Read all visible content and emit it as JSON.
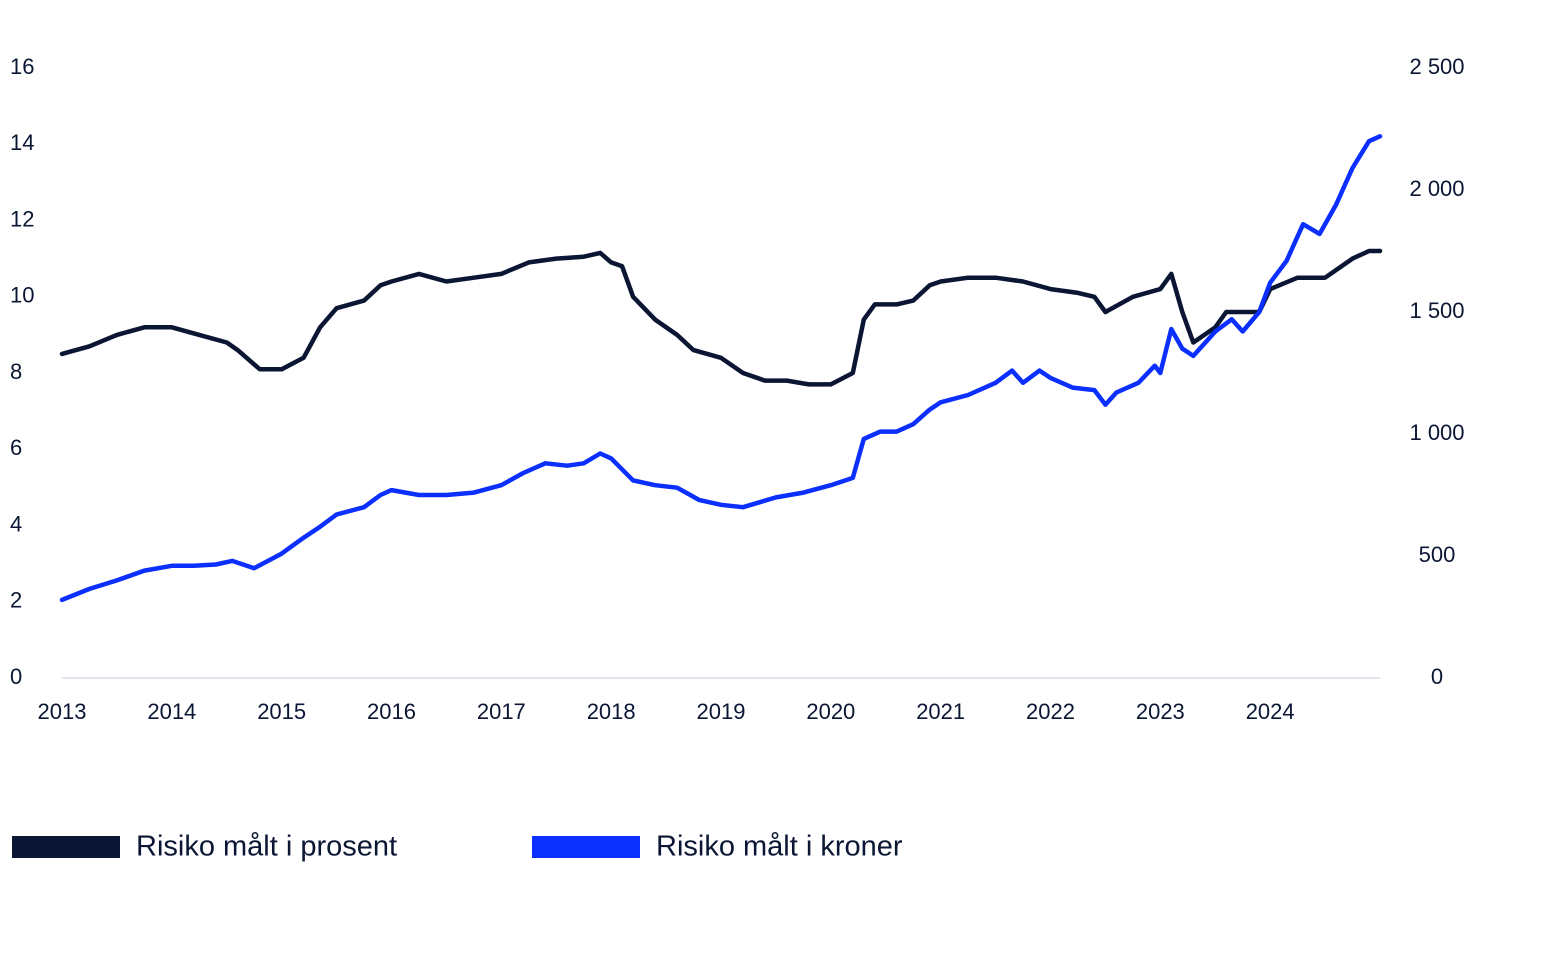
{
  "chart_data": {
    "type": "line",
    "title": "",
    "xlabel": "",
    "ylabel_left": "",
    "ylabel_right": "",
    "x_tick_labels": [
      "2013",
      "2014",
      "2015",
      "2016",
      "2017",
      "2018",
      "2019",
      "2020",
      "2021",
      "2022",
      "2023",
      "2024"
    ],
    "xlim": [
      2013.0,
      2025.0
    ],
    "y_left": {
      "lim": [
        0,
        16
      ],
      "tick_labels": [
        "0",
        "2",
        "4",
        "6",
        "8",
        "10",
        "12",
        "14",
        "16"
      ]
    },
    "y_right": {
      "lim": [
        0,
        2500
      ],
      "tick_labels": [
        "0",
        "500",
        "1 000",
        "1 500",
        "2 000",
        "2 500"
      ]
    },
    "grid": false,
    "legend_position": "bottom-left",
    "series": [
      {
        "name": "Risiko målt i prosent",
        "axis": "left",
        "color": "#0a1633",
        "points": [
          [
            2013.0,
            8.5
          ],
          [
            2013.25,
            8.7
          ],
          [
            2013.5,
            9.0
          ],
          [
            2013.75,
            9.2
          ],
          [
            2014.0,
            9.2
          ],
          [
            2014.25,
            9.0
          ],
          [
            2014.5,
            8.8
          ],
          [
            2014.6,
            8.6
          ],
          [
            2014.8,
            8.1
          ],
          [
            2015.0,
            8.1
          ],
          [
            2015.2,
            8.4
          ],
          [
            2015.35,
            9.2
          ],
          [
            2015.5,
            9.7
          ],
          [
            2015.75,
            9.9
          ],
          [
            2015.9,
            10.3
          ],
          [
            2016.0,
            10.4
          ],
          [
            2016.25,
            10.6
          ],
          [
            2016.5,
            10.4
          ],
          [
            2016.75,
            10.5
          ],
          [
            2017.0,
            10.6
          ],
          [
            2017.25,
            10.9
          ],
          [
            2017.5,
            11.0
          ],
          [
            2017.75,
            11.05
          ],
          [
            2017.9,
            11.15
          ],
          [
            2018.0,
            10.9
          ],
          [
            2018.1,
            10.8
          ],
          [
            2018.2,
            10.0
          ],
          [
            2018.4,
            9.4
          ],
          [
            2018.6,
            9.0
          ],
          [
            2018.75,
            8.6
          ],
          [
            2019.0,
            8.4
          ],
          [
            2019.2,
            8.0
          ],
          [
            2019.4,
            7.8
          ],
          [
            2019.6,
            7.8
          ],
          [
            2019.8,
            7.7
          ],
          [
            2020.0,
            7.7
          ],
          [
            2020.2,
            8.0
          ],
          [
            2020.3,
            9.4
          ],
          [
            2020.4,
            9.8
          ],
          [
            2020.6,
            9.8
          ],
          [
            2020.75,
            9.9
          ],
          [
            2020.9,
            10.3
          ],
          [
            2021.0,
            10.4
          ],
          [
            2021.25,
            10.5
          ],
          [
            2021.5,
            10.5
          ],
          [
            2021.75,
            10.4
          ],
          [
            2022.0,
            10.2
          ],
          [
            2022.25,
            10.1
          ],
          [
            2022.4,
            10.0
          ],
          [
            2022.5,
            9.6
          ],
          [
            2022.75,
            10.0
          ],
          [
            2023.0,
            10.2
          ],
          [
            2023.1,
            10.6
          ],
          [
            2023.2,
            9.6
          ],
          [
            2023.3,
            8.8
          ],
          [
            2023.5,
            9.2
          ],
          [
            2023.6,
            9.6
          ],
          [
            2023.8,
            9.6
          ],
          [
            2023.9,
            9.6
          ],
          [
            2024.0,
            10.2
          ],
          [
            2024.25,
            10.5
          ],
          [
            2024.5,
            10.5
          ],
          [
            2024.75,
            11.0
          ],
          [
            2024.9,
            11.2
          ],
          [
            2025.0,
            11.2
          ]
        ]
      },
      {
        "name": "Risiko målt i kroner",
        "axis": "right",
        "color": "#0a2fff",
        "points": [
          [
            2013.0,
            320
          ],
          [
            2013.25,
            365
          ],
          [
            2013.5,
            400
          ],
          [
            2013.75,
            440
          ],
          [
            2014.0,
            460
          ],
          [
            2014.2,
            460
          ],
          [
            2014.4,
            465
          ],
          [
            2014.55,
            480
          ],
          [
            2014.75,
            450
          ],
          [
            2015.0,
            510
          ],
          [
            2015.2,
            575
          ],
          [
            2015.35,
            620
          ],
          [
            2015.5,
            670
          ],
          [
            2015.75,
            700
          ],
          [
            2015.9,
            750
          ],
          [
            2016.0,
            770
          ],
          [
            2016.25,
            750
          ],
          [
            2016.5,
            750
          ],
          [
            2016.75,
            760
          ],
          [
            2017.0,
            790
          ],
          [
            2017.2,
            840
          ],
          [
            2017.4,
            880
          ],
          [
            2017.6,
            870
          ],
          [
            2017.75,
            880
          ],
          [
            2017.9,
            920
          ],
          [
            2018.0,
            900
          ],
          [
            2018.2,
            810
          ],
          [
            2018.4,
            790
          ],
          [
            2018.6,
            780
          ],
          [
            2018.8,
            730
          ],
          [
            2019.0,
            710
          ],
          [
            2019.2,
            700
          ],
          [
            2019.35,
            720
          ],
          [
            2019.5,
            740
          ],
          [
            2019.75,
            760
          ],
          [
            2020.0,
            790
          ],
          [
            2020.2,
            820
          ],
          [
            2020.3,
            980
          ],
          [
            2020.45,
            1010
          ],
          [
            2020.6,
            1010
          ],
          [
            2020.75,
            1040
          ],
          [
            2020.9,
            1100
          ],
          [
            2021.0,
            1130
          ],
          [
            2021.25,
            1160
          ],
          [
            2021.5,
            1210
          ],
          [
            2021.65,
            1260
          ],
          [
            2021.75,
            1210
          ],
          [
            2021.9,
            1260
          ],
          [
            2022.0,
            1230
          ],
          [
            2022.2,
            1190
          ],
          [
            2022.4,
            1180
          ],
          [
            2022.5,
            1120
          ],
          [
            2022.6,
            1170
          ],
          [
            2022.8,
            1210
          ],
          [
            2022.95,
            1280
          ],
          [
            2023.0,
            1250
          ],
          [
            2023.1,
            1430
          ],
          [
            2023.2,
            1350
          ],
          [
            2023.3,
            1320
          ],
          [
            2023.5,
            1420
          ],
          [
            2023.65,
            1470
          ],
          [
            2023.75,
            1420
          ],
          [
            2023.9,
            1500
          ],
          [
            2024.0,
            1620
          ],
          [
            2024.15,
            1710
          ],
          [
            2024.3,
            1860
          ],
          [
            2024.45,
            1820
          ],
          [
            2024.6,
            1940
          ],
          [
            2024.75,
            2090
          ],
          [
            2024.9,
            2200
          ],
          [
            2025.0,
            2220
          ]
        ]
      }
    ]
  }
}
